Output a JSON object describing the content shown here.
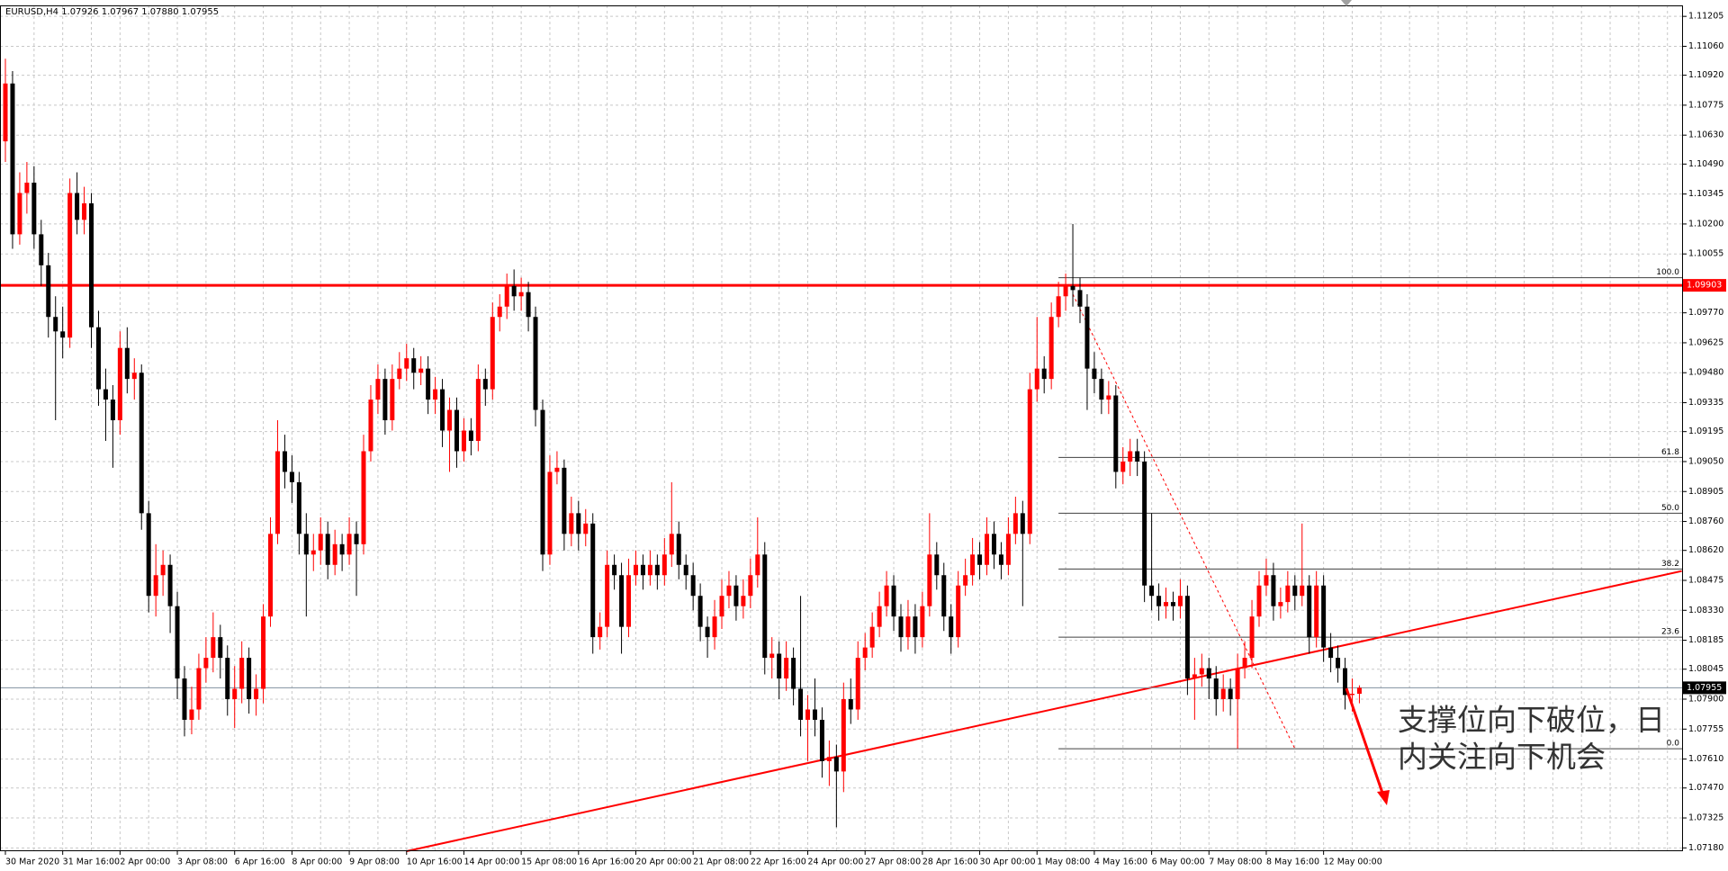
{
  "chart_data": {
    "type": "candlestick",
    "title": "EURUSD,H4  1.07926 1.07967 1.07880 1.07955",
    "up_color": "#ff0000",
    "down_color": "#000000",
    "grid": true,
    "ylim": [
      1.07164,
      1.11258
    ],
    "yticks": [
      1.11205,
      {
        "value": 1.1106,
        "label": "1.11060"
      },
      {
        "value": 1.1092,
        "label": "1.10920"
      },
      1.10775,
      {
        "value": 1.1063,
        "label": "1.10630"
      },
      {
        "value": 1.1049,
        "label": "1.10490"
      },
      1.10345,
      {
        "value": 1.102,
        "label": "1.10200"
      },
      1.10055,
      {
        "value": 1.0977,
        "label": "1.09770"
      },
      1.09625,
      {
        "value": 1.0948,
        "label": "1.09480"
      },
      1.09335,
      1.09195,
      {
        "value": 1.0905,
        "label": "1.09050"
      },
      1.08905,
      {
        "value": 1.0876,
        "label": "1.08760"
      },
      {
        "value": 1.0862,
        "label": "1.08620"
      },
      1.08475,
      {
        "value": 1.0833,
        "label": "1.08330"
      },
      1.08185,
      1.08045,
      {
        "value": 1.079,
        "label": "1.07900"
      },
      1.07755,
      {
        "value": 1.0761,
        "label": "1.07610"
      },
      {
        "value": 1.0747,
        "label": "1.07470"
      },
      1.07325,
      {
        "value": 1.0718,
        "label": "1.07180"
      }
    ],
    "x_labels": [
      "30 Mar 2020",
      "31 Mar 16:00",
      "2 Apr 00:00",
      "3 Apr 08:00",
      "6 Apr 16:00",
      "8 Apr 00:00",
      "9 Apr 08:00",
      "10 Apr 16:00",
      "14 Apr 00:00",
      "15 Apr 08:00",
      "16 Apr 16:00",
      "20 Apr 00:00",
      "21 Apr 08:00",
      "22 Apr 16:00",
      "24 Apr 00:00",
      "27 Apr 08:00",
      "28 Apr 16:00",
      "30 Apr 00:00",
      "1 May 08:00",
      "4 May 16:00",
      "6 May 00:00",
      "7 May 08:00",
      "8 May 16:00",
      "12 May 00:00"
    ],
    "ohlc": [
      [
        1.106,
        1.11,
        1.105,
        1.1088
      ],
      [
        1.1088,
        1.1094,
        1.1008,
        1.1015
      ],
      [
        1.1015,
        1.1045,
        1.101,
        1.1035
      ],
      [
        1.1035,
        1.105,
        1.1025,
        1.104
      ],
      [
        1.104,
        1.1048,
        1.1008,
        1.1015
      ],
      [
        1.1015,
        1.1022,
        1.099,
        1.1
      ],
      [
        1.1,
        1.1006,
        1.0965,
        1.0975
      ],
      [
        1.0975,
        1.0985,
        1.0925,
        1.0968
      ],
      [
        1.0968,
        1.098,
        1.0955,
        1.0965
      ],
      [
        1.0965,
        1.1042,
        1.096,
        1.1035
      ],
      [
        1.1035,
        1.1045,
        1.1015,
        1.1022
      ],
      [
        1.1022,
        1.1038,
        1.1015,
        1.103
      ],
      [
        1.103,
        1.1035,
        1.096,
        1.097
      ],
      [
        1.097,
        1.0978,
        1.0932,
        1.094
      ],
      [
        1.094,
        1.095,
        1.0915,
        1.0935
      ],
      [
        1.0935,
        1.0942,
        1.0902,
        1.0925
      ],
      [
        1.0925,
        1.0968,
        1.0918,
        1.096
      ],
      [
        1.096,
        1.097,
        1.0938,
        1.0945
      ],
      [
        1.0945,
        1.0955,
        1.0935,
        1.0948
      ],
      [
        1.0948,
        1.0952,
        1.0872,
        1.088
      ],
      [
        1.088,
        1.0886,
        1.0832,
        1.084
      ],
      [
        1.084,
        1.0865,
        1.083,
        1.085
      ],
      [
        1.085,
        1.0862,
        1.084,
        1.0855
      ],
      [
        1.0855,
        1.086,
        1.0822,
        1.0835
      ],
      [
        1.0835,
        1.0842,
        1.079,
        1.08
      ],
      [
        1.08,
        1.0806,
        1.0772,
        1.078
      ],
      [
        1.078,
        1.0796,
        1.0773,
        1.0785
      ],
      [
        1.0785,
        1.0812,
        1.078,
        1.0805
      ],
      [
        1.0805,
        1.082,
        1.0798,
        1.081
      ],
      [
        1.081,
        1.0832,
        1.0803,
        1.082
      ],
      [
        1.082,
        1.0826,
        1.08,
        1.081
      ],
      [
        1.081,
        1.0816,
        1.0782,
        1.079
      ],
      [
        1.079,
        1.0806,
        1.0776,
        1.0795
      ],
      [
        1.0795,
        1.0818,
        1.0788,
        1.081
      ],
      [
        1.081,
        1.0815,
        1.0783,
        1.079
      ],
      [
        1.079,
        1.0802,
        1.0782,
        1.0795
      ],
      [
        1.0795,
        1.0836,
        1.0788,
        1.083
      ],
      [
        1.083,
        1.0878,
        1.0825,
        1.087
      ],
      [
        1.087,
        1.0925,
        1.0865,
        1.091
      ],
      [
        1.091,
        1.0918,
        1.0892,
        1.09
      ],
      [
        1.09,
        1.0908,
        1.0885,
        1.0895
      ],
      [
        1.0895,
        1.09,
        1.086,
        1.087
      ],
      [
        1.087,
        1.088,
        1.083,
        1.086
      ],
      [
        1.086,
        1.087,
        1.0852,
        1.0862
      ],
      [
        1.0862,
        1.0878,
        1.0855,
        1.087
      ],
      [
        1.087,
        1.0876,
        1.0848,
        1.0855
      ],
      [
        1.0855,
        1.0872,
        1.085,
        1.0865
      ],
      [
        1.0865,
        1.087,
        1.0852,
        1.086
      ],
      [
        1.086,
        1.0878,
        1.0855,
        1.087
      ],
      [
        1.087,
        1.0876,
        1.084,
        1.0865
      ],
      [
        1.0865,
        1.0918,
        1.086,
        1.091
      ],
      [
        1.091,
        1.0942,
        1.0905,
        1.0935
      ],
      [
        1.0935,
        1.0952,
        1.0928,
        1.0945
      ],
      [
        1.0945,
        1.095,
        1.0918,
        1.0925
      ],
      [
        1.0925,
        1.0952,
        1.092,
        1.0945
      ],
      [
        1.0945,
        1.0958,
        1.094,
        1.095
      ],
      [
        1.095,
        1.0962,
        1.0944,
        1.0955
      ],
      [
        1.0955,
        1.096,
        1.094,
        1.0948
      ],
      [
        1.0948,
        1.0956,
        1.0942,
        1.095
      ],
      [
        1.095,
        1.0956,
        1.0928,
        1.0935
      ],
      [
        1.0935,
        1.0946,
        1.0928,
        1.094
      ],
      [
        1.094,
        1.0945,
        1.0912,
        1.092
      ],
      [
        1.092,
        1.0936,
        1.09,
        1.093
      ],
      [
        1.093,
        1.0936,
        1.0902,
        1.091
      ],
      [
        1.091,
        1.0926,
        1.0905,
        1.092
      ],
      [
        1.092,
        1.0926,
        1.0908,
        1.0915
      ],
      [
        1.0915,
        1.0952,
        1.091,
        1.0945
      ],
      [
        1.0945,
        1.095,
        1.0932,
        1.094
      ],
      [
        1.094,
        1.0982,
        1.0935,
        1.0975
      ],
      [
        1.0975,
        1.0986,
        1.0968,
        1.098
      ],
      [
        1.098,
        1.0996,
        1.0974,
        1.099
      ],
      [
        1.099,
        1.0998,
        1.0978,
        1.0985
      ],
      [
        1.0985,
        1.0994,
        1.0978,
        1.0987
      ],
      [
        1.0987,
        1.0992,
        1.0968,
        1.0975
      ],
      [
        1.0975,
        1.098,
        1.0922,
        1.093
      ],
      [
        1.093,
        1.0935,
        1.0852,
        1.086
      ],
      [
        1.086,
        1.0908,
        1.0855,
        1.09
      ],
      [
        1.09,
        1.091,
        1.0894,
        1.0902
      ],
      [
        1.0902,
        1.0906,
        1.0862,
        1.087
      ],
      [
        1.087,
        1.0888,
        1.0864,
        1.088
      ],
      [
        1.088,
        1.0886,
        1.0862,
        1.087
      ],
      [
        1.087,
        1.0882,
        1.0864,
        1.0875
      ],
      [
        1.0875,
        1.088,
        1.0812,
        1.082
      ],
      [
        1.082,
        1.0832,
        1.0814,
        1.0825
      ],
      [
        1.0825,
        1.0862,
        1.082,
        1.0855
      ],
      [
        1.0855,
        1.086,
        1.0843,
        1.085
      ],
      [
        1.085,
        1.0856,
        1.0812,
        1.0825
      ],
      [
        1.0825,
        1.0858,
        1.082,
        1.085
      ],
      [
        1.085,
        1.0862,
        1.0845,
        1.0855
      ],
      [
        1.0855,
        1.086,
        1.0843,
        1.085
      ],
      [
        1.085,
        1.0862,
        1.0845,
        1.0855
      ],
      [
        1.0855,
        1.086,
        1.0843,
        1.085
      ],
      [
        1.085,
        1.0868,
        1.0845,
        1.086
      ],
      [
        1.086,
        1.0895,
        1.0854,
        1.087
      ],
      [
        1.087,
        1.0876,
        1.0848,
        1.0855
      ],
      [
        1.0855,
        1.086,
        1.0843,
        1.085
      ],
      [
        1.085,
        1.0856,
        1.0833,
        1.084
      ],
      [
        1.084,
        1.0846,
        1.0818,
        1.0825
      ],
      [
        1.0825,
        1.083,
        1.081,
        1.082
      ],
      [
        1.082,
        1.0838,
        1.0814,
        1.083
      ],
      [
        1.083,
        1.0848,
        1.0824,
        1.084
      ],
      [
        1.084,
        1.0852,
        1.0834,
        1.0845
      ],
      [
        1.0845,
        1.085,
        1.0828,
        1.0835
      ],
      [
        1.0835,
        1.0848,
        1.0829,
        1.084
      ],
      [
        1.084,
        1.0858,
        1.0834,
        1.085
      ],
      [
        1.085,
        1.0878,
        1.0844,
        1.086
      ],
      [
        1.086,
        1.0866,
        1.0802,
        1.081
      ],
      [
        1.081,
        1.082,
        1.08,
        1.0812
      ],
      [
        1.0812,
        1.0818,
        1.079,
        1.08
      ],
      [
        1.08,
        1.0818,
        1.0794,
        1.081
      ],
      [
        1.081,
        1.0815,
        1.0787,
        1.0795
      ],
      [
        1.0795,
        1.084,
        1.0772,
        1.078
      ],
      [
        1.078,
        1.0792,
        1.076,
        1.0785
      ],
      [
        1.0785,
        1.08,
        1.0772,
        1.078
      ],
      [
        1.078,
        1.0786,
        1.0752,
        1.076
      ],
      [
        1.076,
        1.077,
        1.0748,
        1.0762
      ],
      [
        1.0762,
        1.0768,
        1.0728,
        1.0755
      ],
      [
        1.0755,
        1.0798,
        1.0745,
        1.079
      ],
      [
        1.079,
        1.08,
        1.0778,
        1.0785
      ],
      [
        1.0785,
        1.0818,
        1.078,
        1.081
      ],
      [
        1.081,
        1.0822,
        1.0804,
        1.0815
      ],
      [
        1.0815,
        1.0832,
        1.081,
        1.0825
      ],
      [
        1.0825,
        1.0842,
        1.082,
        1.0835
      ],
      [
        1.0835,
        1.0852,
        1.083,
        1.0845
      ],
      [
        1.0845,
        1.085,
        1.0823,
        1.083
      ],
      [
        1.083,
        1.0836,
        1.0813,
        1.082
      ],
      [
        1.082,
        1.0838,
        1.0814,
        1.083
      ],
      [
        1.083,
        1.0836,
        1.0812,
        1.082
      ],
      [
        1.082,
        1.0842,
        1.0815,
        1.0835
      ],
      [
        1.0835,
        1.088,
        1.083,
        1.086
      ],
      [
        1.086,
        1.0866,
        1.0843,
        1.085
      ],
      [
        1.085,
        1.0856,
        1.0823,
        1.083
      ],
      [
        1.083,
        1.0836,
        1.0812,
        1.082
      ],
      [
        1.082,
        1.0852,
        1.0815,
        1.0845
      ],
      [
        1.0845,
        1.0858,
        1.084,
        1.085
      ],
      [
        1.085,
        1.0868,
        1.0845,
        1.086
      ],
      [
        1.086,
        1.0866,
        1.0848,
        1.0855
      ],
      [
        1.0855,
        1.0878,
        1.085,
        1.087
      ],
      [
        1.087,
        1.0876,
        1.0853,
        1.086
      ],
      [
        1.086,
        1.0866,
        1.0848,
        1.0855
      ],
      [
        1.0855,
        1.0878,
        1.085,
        1.087
      ],
      [
        1.087,
        1.0888,
        1.0865,
        1.088
      ],
      [
        1.088,
        1.0886,
        1.0835,
        1.087
      ],
      [
        1.087,
        1.0948,
        1.0865,
        1.094
      ],
      [
        1.094,
        1.0975,
        1.0934,
        1.095
      ],
      [
        1.095,
        1.0956,
        1.0938,
        1.0945
      ],
      [
        1.0945,
        1.0982,
        1.094,
        1.0975
      ],
      [
        1.0975,
        1.0992,
        1.097,
        1.0985
      ],
      [
        1.0985,
        1.0996,
        1.0978,
        1.099
      ],
      [
        1.099,
        1.102,
        1.098,
        1.0988
      ],
      [
        1.0988,
        1.0994,
        1.0972,
        1.098
      ],
      [
        1.098,
        1.0986,
        1.093,
        1.095
      ],
      [
        1.095,
        1.0958,
        1.0938,
        1.0945
      ],
      [
        1.0945,
        1.095,
        1.0928,
        1.0935
      ],
      [
        1.0935,
        1.0944,
        1.0928,
        1.0937
      ],
      [
        1.0937,
        1.0942,
        1.0892,
        1.09
      ],
      [
        1.09,
        1.0912,
        1.0894,
        1.0905
      ],
      [
        1.0905,
        1.0916,
        1.0898,
        1.091
      ],
      [
        1.091,
        1.0916,
        1.0898,
        1.0905
      ],
      [
        1.0905,
        1.091,
        1.0837,
        1.0845
      ],
      [
        1.0845,
        1.088,
        1.0833,
        1.084
      ],
      [
        1.084,
        1.0846,
        1.0828,
        1.0835
      ],
      [
        1.0835,
        1.0844,
        1.0829,
        1.0837
      ],
      [
        1.0837,
        1.0842,
        1.0828,
        1.0835
      ],
      [
        1.0835,
        1.0848,
        1.0829,
        1.084
      ],
      [
        1.084,
        1.0845,
        1.0792,
        1.08
      ],
      [
        1.08,
        1.081,
        1.078,
        1.0802
      ],
      [
        1.0802,
        1.0812,
        1.0796,
        1.0805
      ],
      [
        1.0805,
        1.081,
        1.079,
        1.08
      ],
      [
        1.08,
        1.0806,
        1.0782,
        1.079
      ],
      [
        1.079,
        1.0802,
        1.0784,
        1.0795
      ],
      [
        1.0795,
        1.08,
        1.0782,
        1.079
      ],
      [
        1.079,
        1.0812,
        1.0766,
        1.0805
      ],
      [
        1.0805,
        1.0818,
        1.08,
        1.081
      ],
      [
        1.081,
        1.0838,
        1.0805,
        1.083
      ],
      [
        1.083,
        1.0852,
        1.0825,
        1.0845
      ],
      [
        1.0845,
        1.0858,
        1.084,
        1.085
      ],
      [
        1.085,
        1.0856,
        1.0828,
        1.0835
      ],
      [
        1.0835,
        1.0844,
        1.0829,
        1.0837
      ],
      [
        1.0837,
        1.0852,
        1.0832,
        1.0845
      ],
      [
        1.0845,
        1.085,
        1.0833,
        1.084
      ],
      [
        1.084,
        1.0875,
        1.0835,
        1.0845
      ],
      [
        1.0845,
        1.085,
        1.0812,
        1.082
      ],
      [
        1.082,
        1.0852,
        1.0815,
        1.0845
      ],
      [
        1.0845,
        1.085,
        1.0808,
        1.0815
      ],
      [
        1.0815,
        1.0822,
        1.0803,
        1.081
      ],
      [
        1.081,
        1.0816,
        1.0798,
        1.0805
      ],
      [
        1.0805,
        1.081,
        1.0785,
        1.0792
      ],
      [
        1.0792,
        1.08,
        1.0784,
        1.07926
      ],
      [
        1.07926,
        1.07967,
        1.0788,
        1.07955
      ]
    ],
    "hline": {
      "price": 1.09903,
      "color": "#ff0000"
    },
    "trendline": {
      "from": {
        "bar": 56,
        "price": 1.07164
      },
      "to": {
        "bar": 234,
        "price": 1.0852
      },
      "color": "#ff0000"
    },
    "dotted_line": {
      "from": {
        "bar": 149,
        "price": 1.0986
      },
      "to": {
        "bar": 180,
        "price": 1.0766
      },
      "color": "#ff0000"
    },
    "fibonacci": {
      "start_bar": 147,
      "color": "#404040",
      "levels": [
        {
          "label": "100.0",
          "price": 1.0994
        },
        {
          "label": "61.8",
          "price": 1.0907
        },
        {
          "label": "50.0",
          "price": 1.088
        },
        {
          "label": "38.2",
          "price": 1.0853
        },
        {
          "label": "23.6",
          "price": 1.082
        },
        {
          "label": "0.0",
          "price": 1.0766
        }
      ]
    },
    "annotation": [
      "支撑位向下破位，日",
      "内关注向下机会"
    ]
  }
}
